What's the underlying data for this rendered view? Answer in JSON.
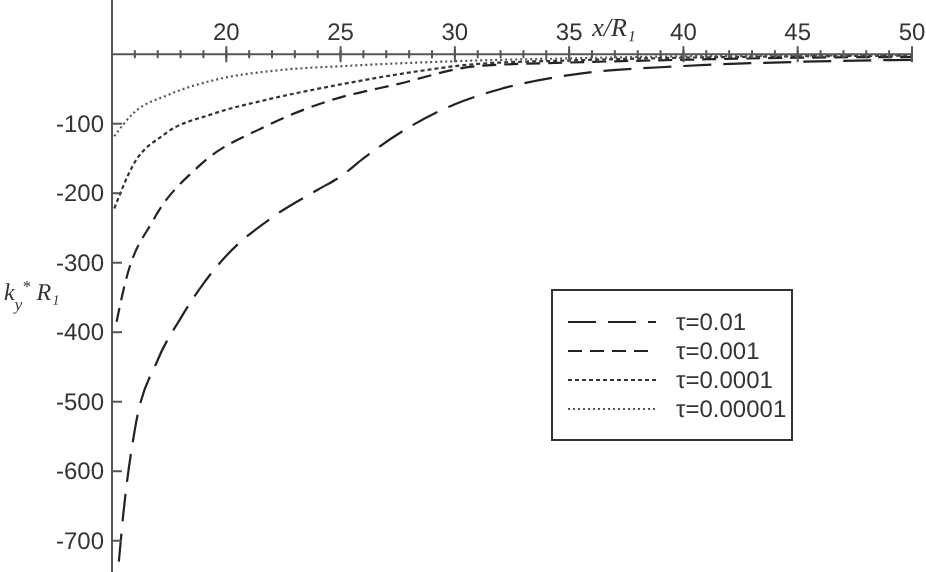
{
  "chart_data": {
    "type": "line",
    "xlabel": "x/R₁",
    "ylabel": "k$_{y}$$^{*}$ R₁",
    "xlim": [
      15,
      50
    ],
    "ylim": [
      -745,
      78
    ],
    "xticks": [
      20,
      25,
      30,
      35,
      40,
      45,
      50
    ],
    "yticks": [
      -100,
      -200,
      -300,
      -400,
      -500,
      -600,
      -700
    ],
    "grid": false,
    "legend": "right",
    "series": [
      {
        "name": "τ=0.01",
        "color": "#222222",
        "line_style": "dashed",
        "x": [
          15.3,
          15.5,
          16,
          17,
          18,
          19,
          20,
          22,
          24,
          25,
          26,
          28,
          30,
          32,
          35,
          40,
          45,
          50
        ],
        "values": [
          -730,
          -660,
          -540,
          -440,
          -380,
          -330,
          -290,
          -235,
          -195,
          -176,
          -150,
          -105,
          -72,
          -50,
          -30,
          -17,
          -11,
          -8
        ]
      },
      {
        "name": "τ=0.001",
        "color": "#222222",
        "line_style": "dashed",
        "x": [
          15.2,
          15.6,
          16.8,
          18.8,
          21.7,
          24.6,
          27.5,
          31,
          35,
          40,
          45,
          50
        ],
        "values": [
          -385,
          -326,
          -239,
          -161,
          -104,
          -66,
          -43,
          -17,
          -12,
          -8,
          -5,
          -4
        ]
      },
      {
        "name": "τ=0.0001",
        "color": "#333333",
        "line_style": "dotted",
        "x": [
          15.1,
          15.9,
          17.3,
          19.4,
          21.7,
          24.6,
          27.5,
          31,
          35,
          40,
          45,
          50
        ],
        "values": [
          -222,
          -161,
          -115,
          -86,
          -66,
          -46,
          -29,
          -14,
          -9,
          -5,
          -3,
          -2
        ]
      },
      {
        "name": "τ=0.00001",
        "color": "#555555",
        "line_style": "dotted",
        "x": [
          15.1,
          15.9,
          17.5,
          19.5,
          22.3,
          25.2,
          31,
          35,
          40,
          45,
          50
        ],
        "values": [
          -118,
          -86,
          -58,
          -37,
          -23,
          -17,
          -9,
          -6,
          -3,
          -2,
          -1
        ]
      }
    ]
  }
}
